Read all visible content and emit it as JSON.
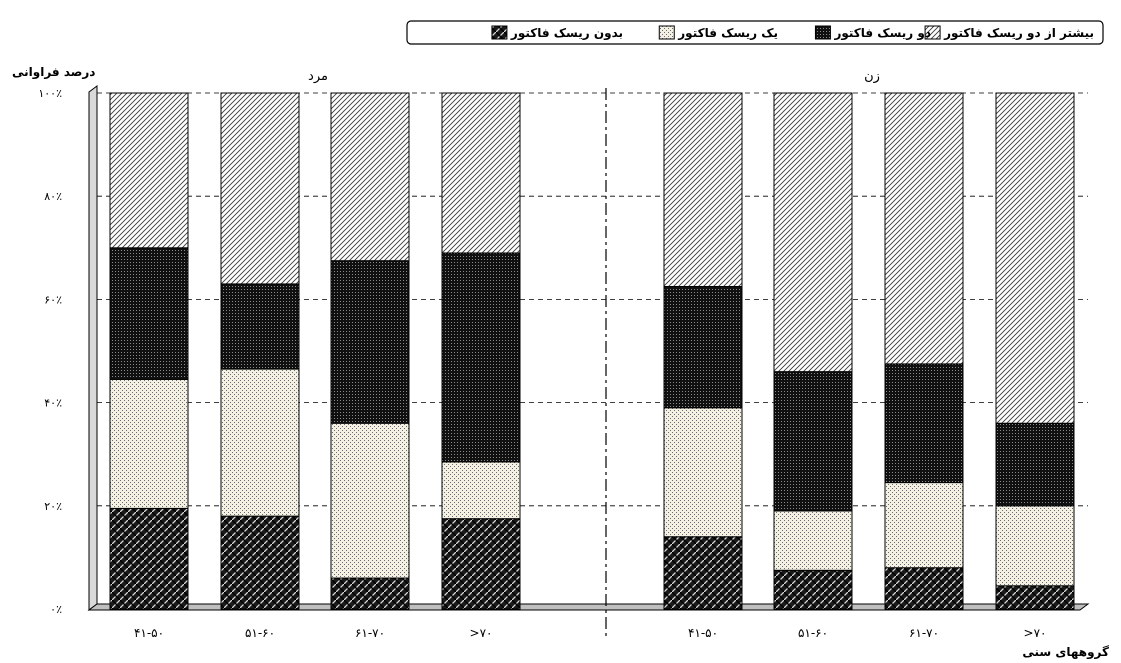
{
  "chart_data": {
    "type": "bar",
    "stacked": true,
    "percent": true,
    "ylabel": "درصد فراوانی",
    "xlabel": "گروههای سنی",
    "y_ticks": [
      "۰٪",
      "۲۰٪",
      "۴۰٪",
      "۶۰٪",
      "۸۰٪",
      "۱۰۰٪"
    ],
    "ylim": [
      0,
      100
    ],
    "grid": "horizontal dashed",
    "legend_position": "top",
    "groups": [
      {
        "name": "مرد",
        "categories": [
          "۴۱-۵۰",
          "۵۱-۶۰",
          "۶۱-۷۰",
          ">۷۰"
        ]
      },
      {
        "name": "زن",
        "categories": [
          "۴۱-۵۰",
          "۵۱-۶۰",
          "۶۱-۷۰",
          ">۷۰"
        ]
      }
    ],
    "series": [
      {
        "name": "بدون ریسک فاکتور",
        "pattern": "crosshatch-dark",
        "values": [
          19.5,
          18,
          6,
          17.5,
          14,
          7.5,
          8,
          4.5
        ]
      },
      {
        "name": "یک ریسک فاکتور",
        "pattern": "dotted-light",
        "values": [
          25,
          28.5,
          30,
          11,
          25,
          11.5,
          16.5,
          15.5
        ]
      },
      {
        "name": "دو ریسک فاکتور",
        "pattern": "dotted-dark",
        "values": [
          25.5,
          16.5,
          31.5,
          40.5,
          23.5,
          27,
          23,
          16
        ]
      },
      {
        "name": "بیشتر از دو ریسک فاکتور",
        "pattern": "diagonal-light",
        "values": [
          30,
          37,
          32.5,
          31,
          37.5,
          54,
          52.5,
          64
        ]
      }
    ]
  }
}
